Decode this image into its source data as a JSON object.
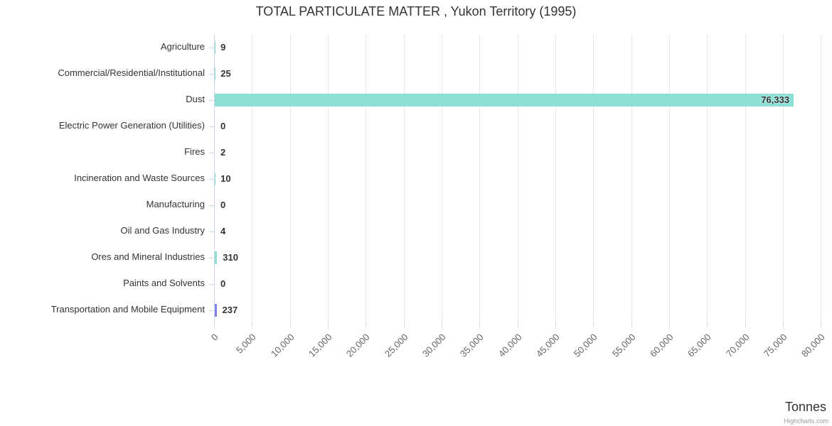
{
  "title": "TOTAL PARTICULATE MATTER , Yukon Territory (1995)",
  "x_axis": {
    "title": "Tonnes",
    "tick_labels": [
      "0",
      "5,000",
      "10,000",
      "15,000",
      "20,000",
      "25,000",
      "30,000",
      "35,000",
      "40,000",
      "45,000",
      "50,000",
      "55,000",
      "60,000",
      "65,000",
      "70,000",
      "75,000",
      "80,000"
    ]
  },
  "credit": "Highcharts.com",
  "chart_data": {
    "type": "bar",
    "orientation": "horizontal",
    "title": "TOTAL PARTICULATE MATTER , Yukon Territory (1995)",
    "categories": [
      "Agriculture",
      "Commercial/Residential/Institutional",
      "Dust",
      "Electric Power Generation (Utilities)",
      "Fires",
      "Incineration and Waste Sources",
      "Manufacturing",
      "Oil and Gas Industry",
      "Ores and Mineral Industries",
      "Paints and Solvents",
      "Transportation and Mobile Equipment"
    ],
    "values": [
      9,
      25,
      76333,
      0,
      2,
      10,
      0,
      4,
      310,
      0,
      237
    ],
    "value_labels": [
      "9",
      "25",
      "76,333",
      "0",
      "2",
      "10",
      "0",
      "4",
      "310",
      "0",
      "237"
    ],
    "xlabel": "Tonnes",
    "ylabel": "",
    "xlim": [
      0,
      81200
    ],
    "tick_interval": 5000,
    "grid": true,
    "legend": "none",
    "bar_colors": [
      "#8ce0d6",
      "#8ce0d6",
      "#8ce0d6",
      "#8ce0d6",
      "#8ce0d6",
      "#8ce0d6",
      "#8ce0d6",
      "#8ce0d6",
      "#8ce0d6",
      "#8ce0d6",
      "#8085e9"
    ],
    "colors": {
      "grid": "#e6e6e6",
      "axis": "#ccd6eb",
      "category_label": "#333333",
      "tick_label": "#666666",
      "value_label": "#333333"
    }
  }
}
